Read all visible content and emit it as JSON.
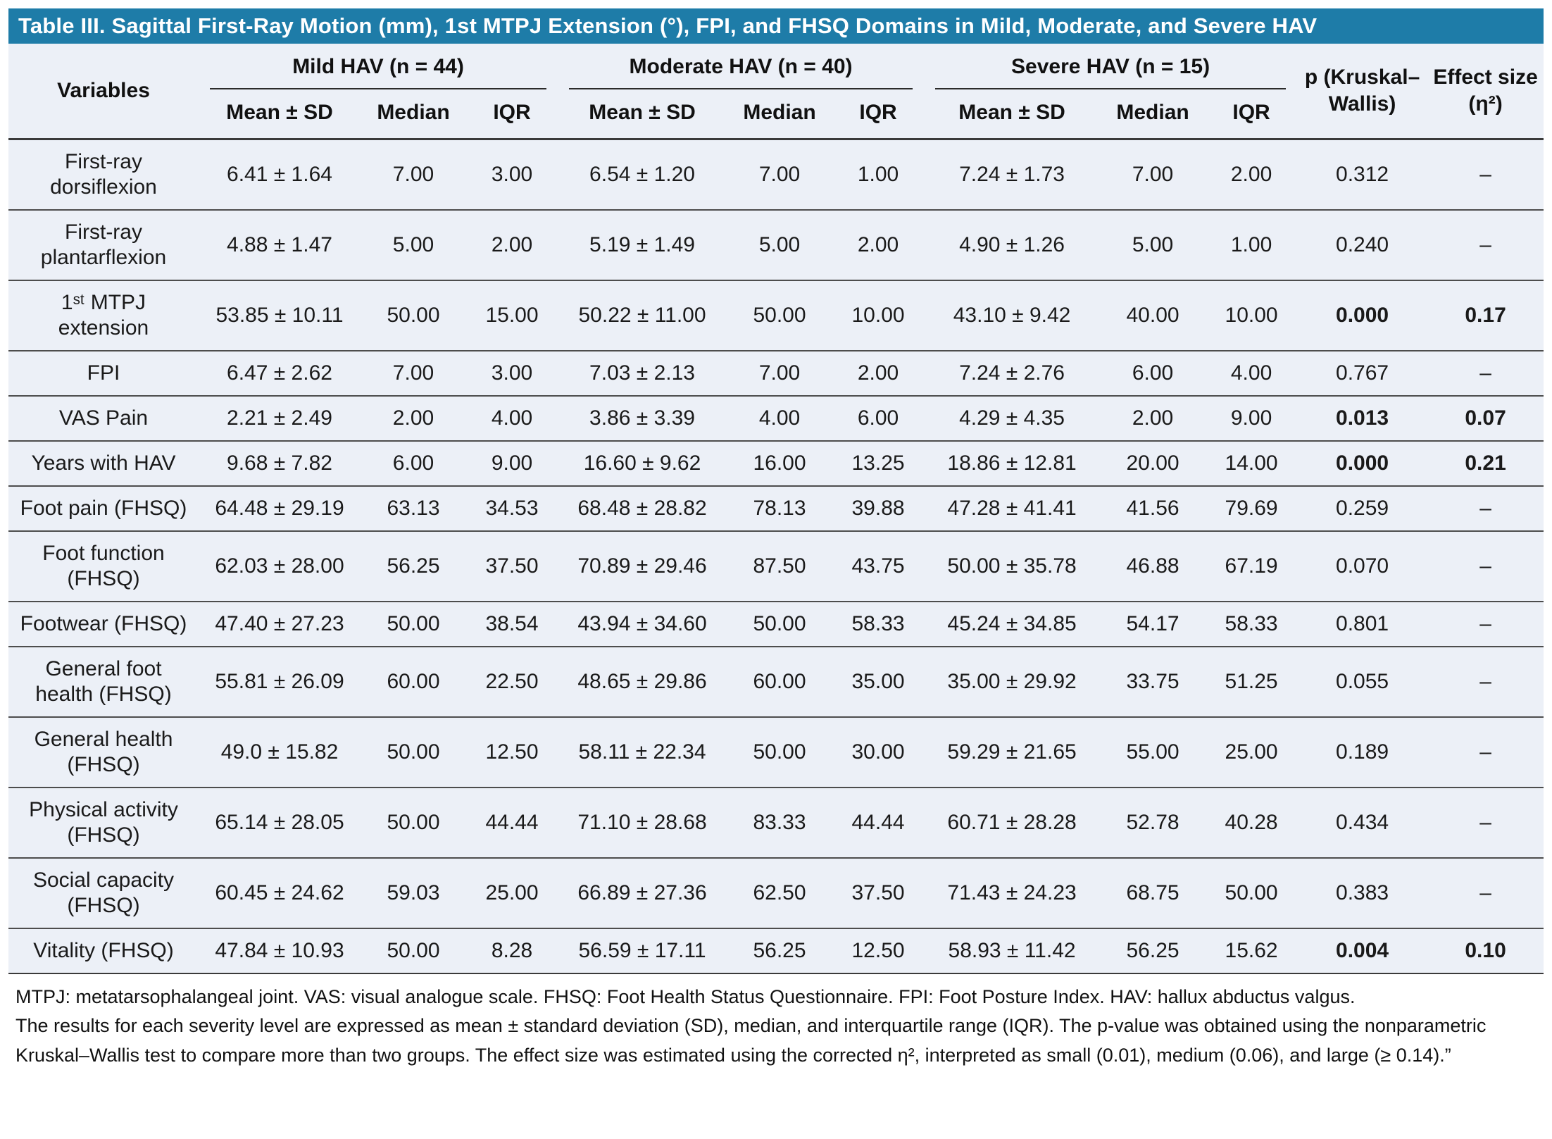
{
  "title": "Table III. Sagittal First-Ray Motion (mm), 1st MTPJ Extension (°), FPI, and FHSQ Domains in Mild, Moderate, and Severe HAV",
  "colors": {
    "header_bar": "#1E7CA8",
    "table_background": "#ECF0F7",
    "row_separator": "#4D4D4D",
    "title_text": "#FFFFFF"
  },
  "columns": {
    "variables": "Variables",
    "groups": [
      "Mild HAV (n = 44)",
      "Moderate HAV (n = 40)",
      "Severe HAV (n = 15)"
    ],
    "sub": [
      "Mean ± SD",
      "Median",
      "IQR"
    ],
    "p": "p (Kruskal–Wallis)",
    "effect": "Effect size (η²)"
  },
  "rows": [
    {
      "variable": "First-ray dorsiflexion",
      "mild": [
        "6.41 ± 1.64",
        "7.00",
        "3.00"
      ],
      "moderate": [
        "6.54 ± 1.20",
        "7.00",
        "1.00"
      ],
      "severe": [
        "7.24 ± 1.73",
        "7.00",
        "2.00"
      ],
      "p": "0.312",
      "effect": "–",
      "significant": false
    },
    {
      "variable": "First-ray plantarflexion",
      "mild": [
        "4.88 ± 1.47",
        "5.00",
        "2.00"
      ],
      "moderate": [
        "5.19 ± 1.49",
        "5.00",
        "2.00"
      ],
      "severe": [
        "4.90 ± 1.26",
        "5.00",
        "1.00"
      ],
      "p": "0.240",
      "effect": "–",
      "significant": false
    },
    {
      "variable": "1ˢᵗ MTPJ extension",
      "mild": [
        "53.85 ± 10.11",
        "50.00",
        "15.00"
      ],
      "moderate": [
        "50.22 ± 11.00",
        "50.00",
        "10.00"
      ],
      "severe": [
        "43.10 ± 9.42",
        "40.00",
        "10.00"
      ],
      "p": "0.000",
      "effect": "0.17",
      "significant": true
    },
    {
      "variable": "FPI",
      "mild": [
        "6.47 ± 2.62",
        "7.00",
        "3.00"
      ],
      "moderate": [
        "7.03 ± 2.13",
        "7.00",
        "2.00"
      ],
      "severe": [
        "7.24 ± 2.76",
        "6.00",
        "4.00"
      ],
      "p": "0.767",
      "effect": "–",
      "significant": false
    },
    {
      "variable": "VAS Pain",
      "mild": [
        "2.21 ± 2.49",
        "2.00",
        "4.00"
      ],
      "moderate": [
        "3.86 ± 3.39",
        "4.00",
        "6.00"
      ],
      "severe": [
        "4.29 ± 4.35",
        "2.00",
        "9.00"
      ],
      "p": "0.013",
      "effect": "0.07",
      "significant": true
    },
    {
      "variable": "Years with HAV",
      "mild": [
        "9.68 ± 7.82",
        "6.00",
        "9.00"
      ],
      "moderate": [
        "16.60 ± 9.62",
        "16.00",
        "13.25"
      ],
      "severe": [
        "18.86 ± 12.81",
        "20.00",
        "14.00"
      ],
      "p": "0.000",
      "effect": "0.21",
      "significant": true
    },
    {
      "variable": "Foot pain (FHSQ)",
      "mild": [
        "64.48 ± 29.19",
        "63.13",
        "34.53"
      ],
      "moderate": [
        "68.48 ± 28.82",
        "78.13",
        "39.88"
      ],
      "severe": [
        "47.28 ± 41.41",
        "41.56",
        "79.69"
      ],
      "p": "0.259",
      "effect": "–",
      "significant": false
    },
    {
      "variable": "Foot function (FHSQ)",
      "mild": [
        "62.03 ± 28.00",
        "56.25",
        "37.50"
      ],
      "moderate": [
        "70.89 ± 29.46",
        "87.50",
        "43.75"
      ],
      "severe": [
        "50.00 ± 35.78",
        "46.88",
        "67.19"
      ],
      "p": "0.070",
      "effect": "–",
      "significant": false
    },
    {
      "variable": "Footwear (FHSQ)",
      "mild": [
        "47.40 ± 27.23",
        "50.00",
        "38.54"
      ],
      "moderate": [
        "43.94 ± 34.60",
        "50.00",
        "58.33"
      ],
      "severe": [
        "45.24 ± 34.85",
        "54.17",
        "58.33"
      ],
      "p": "0.801",
      "effect": "–",
      "significant": false
    },
    {
      "variable": "General foot health (FHSQ)",
      "mild": [
        "55.81 ± 26.09",
        "60.00",
        "22.50"
      ],
      "moderate": [
        "48.65 ± 29.86",
        "60.00",
        "35.00"
      ],
      "severe": [
        "35.00 ± 29.92",
        "33.75",
        "51.25"
      ],
      "p": "0.055",
      "effect": "–",
      "significant": false
    },
    {
      "variable": "General health (FHSQ)",
      "mild": [
        "49.0 ± 15.82",
        "50.00",
        "12.50"
      ],
      "moderate": [
        "58.11 ± 22.34",
        "50.00",
        "30.00"
      ],
      "severe": [
        "59.29 ± 21.65",
        "55.00",
        "25.00"
      ],
      "p": "0.189",
      "effect": "–",
      "significant": false
    },
    {
      "variable": "Physical activity (FHSQ)",
      "mild": [
        "65.14 ± 28.05",
        "50.00",
        "44.44"
      ],
      "moderate": [
        "71.10 ± 28.68",
        "83.33",
        "44.44"
      ],
      "severe": [
        "60.71 ± 28.28",
        "52.78",
        "40.28"
      ],
      "p": "0.434",
      "effect": "–",
      "significant": false
    },
    {
      "variable": "Social capacity (FHSQ)",
      "mild": [
        "60.45 ± 24.62",
        "59.03",
        "25.00"
      ],
      "moderate": [
        "66.89 ± 27.36",
        "62.50",
        "37.50"
      ],
      "severe": [
        "71.43 ± 24.23",
        "68.75",
        "50.00"
      ],
      "p": "0.383",
      "effect": "–",
      "significant": false
    },
    {
      "variable": "Vitality (FHSQ)",
      "mild": [
        "47.84 ± 10.93",
        "50.00",
        "8.28"
      ],
      "moderate": [
        "56.59 ± 17.11",
        "56.25",
        "12.50"
      ],
      "severe": [
        "58.93 ± 11.42",
        "56.25",
        "15.62"
      ],
      "p": "0.004",
      "effect": "0.10",
      "significant": true
    }
  ],
  "footnotes": [
    "MTPJ: metatarsophalangeal joint. VAS: visual analogue scale. FHSQ: Foot Health Status Questionnaire. FPI: Foot Posture Index. HAV: hallux abductus valgus.",
    "The results for each severity level are expressed as mean ± standard deviation (SD), median, and interquartile range (IQR). The p-value was obtained using the nonparametric Kruskal–Wallis test to compare more than two groups. The effect size was estimated using the corrected η², interpreted as small (0.01), medium (0.06), and large (≥ 0.14).”"
  ]
}
